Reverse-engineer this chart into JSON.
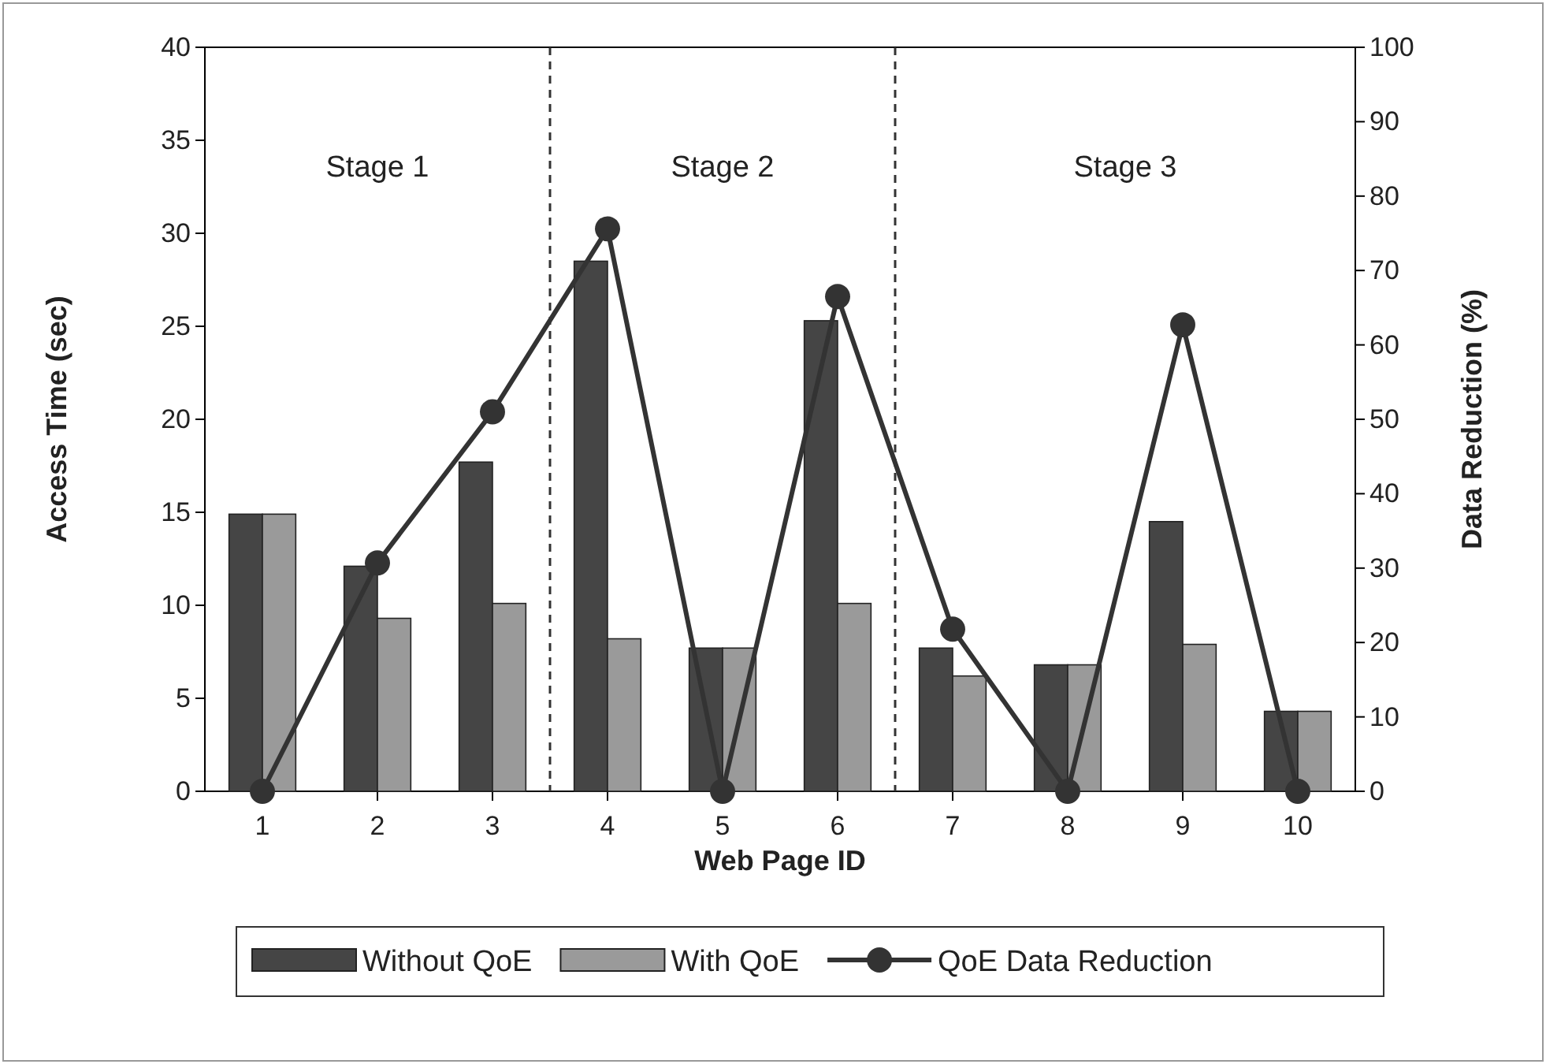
{
  "chart_data": {
    "type": "bar",
    "xlabel": "Web Page ID",
    "ylabel": "Access Time (sec)",
    "y2label": "Data Reduction (%)",
    "x": [
      1,
      2,
      3,
      4,
      5,
      6,
      7,
      8,
      9,
      10
    ],
    "xlim": [
      0.5,
      10.5
    ],
    "xticks": [
      1,
      2,
      3,
      4,
      5,
      6,
      7,
      8,
      9,
      10
    ],
    "ylim": [
      0,
      40
    ],
    "yticks": [
      0,
      5,
      10,
      15,
      20,
      25,
      30,
      35,
      40
    ],
    "y2lim": [
      0,
      100
    ],
    "y2ticks": [
      0,
      10,
      20,
      30,
      40,
      50,
      60,
      70,
      80,
      90,
      100
    ],
    "series": [
      {
        "name": "Without QoE",
        "color": "#454545",
        "values": [
          14.9,
          12.1,
          17.7,
          28.5,
          7.7,
          25.3,
          7.7,
          6.8,
          14.5,
          4.3
        ]
      },
      {
        "name": "With QoE",
        "color": "#9a9a9a",
        "values": [
          14.9,
          9.3,
          10.1,
          8.2,
          7.7,
          10.1,
          6.2,
          6.8,
          7.9,
          4.3
        ]
      },
      {
        "name": "QoE Data Reduction",
        "type": "line",
        "axis": "y2",
        "color": "#333333",
        "marker": "circle",
        "values": [
          0,
          30.7,
          51,
          75.6,
          0,
          66.5,
          21.8,
          0,
          62.7,
          0
        ]
      }
    ],
    "ref_lines": [
      {
        "axis": "x",
        "value": 3.5,
        "line_style": "dashed",
        "color": "#333333"
      },
      {
        "axis": "x",
        "value": 6.5,
        "line_style": "dashed",
        "color": "#333333"
      }
    ],
    "annotations": [
      "Stage 1",
      "Stage 2",
      "Stage 3"
    ],
    "grid": false,
    "legend": "bottom"
  }
}
